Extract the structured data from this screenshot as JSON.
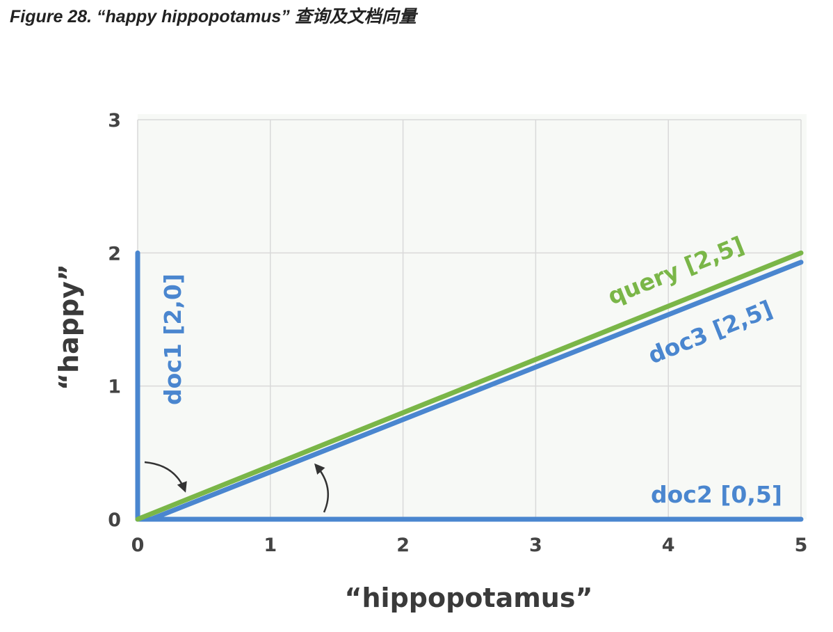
{
  "figure": {
    "caption": "Figure 28. “happy hippopotamus” 查询及文档向量"
  },
  "chart_data": {
    "type": "line",
    "xlabel": "“hippopotamus”",
    "ylabel": "“happy”",
    "xlim": [
      0,
      5
    ],
    "ylim": [
      0,
      3
    ],
    "xticks": [
      "0",
      "1",
      "2",
      "3",
      "4",
      "5"
    ],
    "yticks": [
      "0",
      "1",
      "2",
      "3"
    ],
    "grid": true,
    "colors": {
      "doc": "#4a86cf",
      "query": "#7ab648",
      "plot_background": "#f7f9f6",
      "grid": "#d9d9d9",
      "arrow": "#333333"
    },
    "series": [
      {
        "name": "doc1 [2,0]",
        "color": "#4a86cf",
        "points": [
          [
            0,
            0
          ],
          [
            0,
            2
          ]
        ]
      },
      {
        "name": "doc2 [0,5]",
        "color": "#4a86cf",
        "points": [
          [
            0,
            0
          ],
          [
            5,
            0
          ]
        ]
      },
      {
        "name": "doc3 [2,5]",
        "color": "#4a86cf",
        "points": [
          [
            0.1,
            0
          ],
          [
            5,
            1.93
          ]
        ]
      },
      {
        "name": "query [2,5]",
        "color": "#7ab648",
        "points": [
          [
            0,
            0
          ],
          [
            5,
            2
          ]
        ]
      }
    ],
    "annotations": [
      {
        "type": "angle-arrow",
        "description": "curved arrow between doc1 and query"
      },
      {
        "type": "angle-arrow",
        "description": "curved arrow between doc2 and query"
      }
    ]
  }
}
